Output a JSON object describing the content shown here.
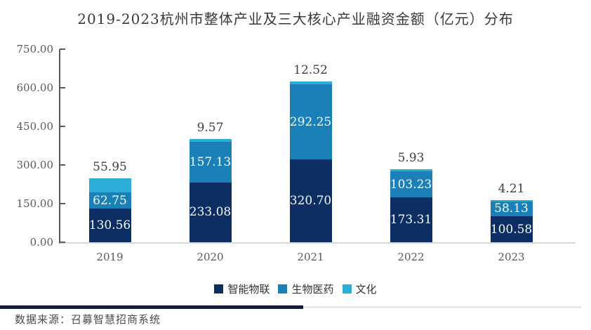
{
  "chart_data": {
    "type": "bar",
    "stacked": true,
    "title": "2019-2023杭州市整体产业及三大核心产业融资金额（亿元）分布",
    "categories": [
      "2019",
      "2020",
      "2021",
      "2022",
      "2023"
    ],
    "series": [
      {
        "name": "智能物联",
        "color": "#0d2e63",
        "values": [
          130.56,
          233.08,
          320.7,
          173.31,
          100.58
        ]
      },
      {
        "name": "生物医药",
        "color": "#1b7fb8",
        "values": [
          62.75,
          157.13,
          292.25,
          103.23,
          58.13
        ]
      },
      {
        "name": "文化",
        "color": "#2aaed6",
        "values": [
          55.95,
          9.57,
          12.52,
          5.93,
          4.21
        ]
      }
    ],
    "ylim": [
      0,
      750
    ],
    "yticks": [
      "750.00",
      "600.00",
      "450.00",
      "300.00",
      "150.00",
      "0.00"
    ],
    "xlabel": "",
    "ylabel": "",
    "grid": false,
    "legend_position": "bottom",
    "value_label_rule": "inner labels for 智能物联 and 生物医药, 文化 value shown above bar top"
  },
  "footer": {
    "source_text": "数据来源：召募智慧招商系统"
  }
}
